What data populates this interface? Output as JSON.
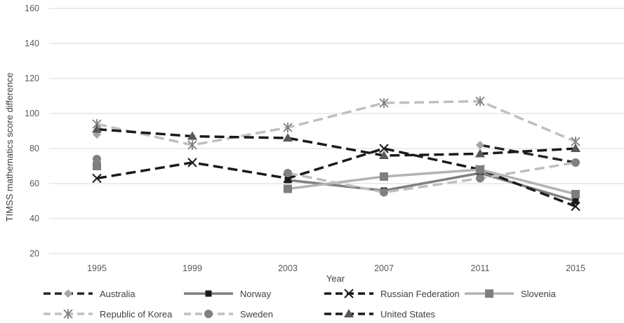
{
  "chart_data": {
    "type": "line",
    "title": "",
    "xlabel": "Year",
    "ylabel": "TIMSS mathematics score difference",
    "ylim": [
      20,
      160
    ],
    "yticks": [
      20,
      40,
      60,
      80,
      100,
      120,
      140,
      160
    ],
    "categories": [
      "1995",
      "1999",
      "2003",
      "2007",
      "2011",
      "2015"
    ],
    "grid": true,
    "legend_position": "bottom",
    "series": [
      {
        "name": "Australia",
        "values": [
          88,
          null,
          null,
          null,
          82,
          72
        ],
        "color": "#262626",
        "dash": "dashed",
        "marker": "diamond"
      },
      {
        "name": "Norway",
        "values": [
          null,
          null,
          62,
          56,
          66,
          50
        ],
        "color": "#7f7f7f",
        "dash": "solid",
        "marker": "square-small"
      },
      {
        "name": "Russian Federation",
        "values": [
          63,
          72,
          63,
          80,
          68,
          47
        ],
        "color": "#1a1a1a",
        "dash": "dashed",
        "marker": "x"
      },
      {
        "name": "Slovenia",
        "values": [
          70,
          null,
          57,
          64,
          68,
          54
        ],
        "color": "#b3b3b3",
        "dash": "solid",
        "marker": "square"
      },
      {
        "name": "Republic of Korea",
        "values": [
          94,
          82,
          92,
          106,
          107,
          84
        ],
        "color": "#bfbfbf",
        "dash": "dashed",
        "marker": "star"
      },
      {
        "name": "Sweden",
        "values": [
          74,
          null,
          66,
          55,
          63,
          72
        ],
        "color": "#bfbfbf",
        "dash": "dashed",
        "marker": "circle"
      },
      {
        "name": "United States",
        "values": [
          91,
          87,
          86,
          76,
          77,
          80
        ],
        "color": "#1a1a1a",
        "dash": "dashed",
        "marker": "triangle"
      }
    ]
  }
}
